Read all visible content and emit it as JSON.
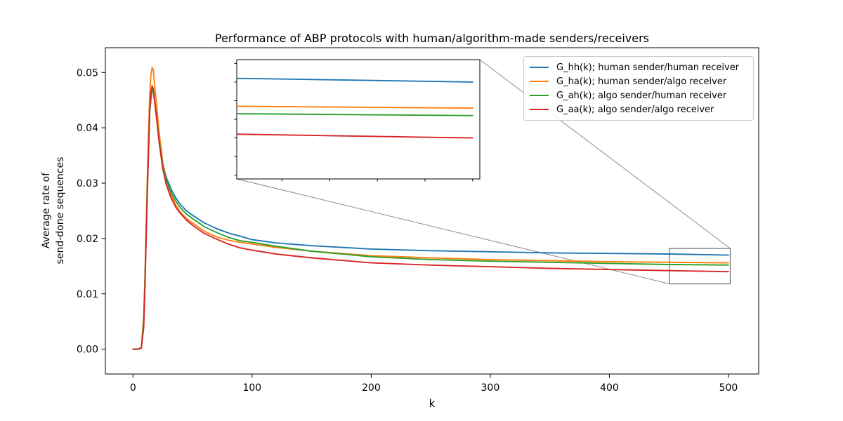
{
  "chart_data": {
    "type": "line",
    "title": "Performance of ABP protocols with human/algorithm-made senders/receivers",
    "xlabel": "k",
    "ylabel": "Average rate of send-done sequences",
    "ylabel_lines": [
      "Average rate of",
      "send-done sequences"
    ],
    "grid": false,
    "legend_position": "upper right",
    "axis_color": "#000000",
    "background_color": "#ffffff",
    "connector_color": "#8c8c8c",
    "zoom_rect_color": "#6b6b6b",
    "legend_border_color": "#cccccc",
    "xlim": [
      -23.2,
      525.4
    ],
    "ylim": [
      -0.00448,
      0.05447
    ],
    "xticks": [
      0,
      100,
      200,
      300,
      400,
      500
    ],
    "xtick_labels": [
      "0",
      "100",
      "200",
      "300",
      "400",
      "500"
    ],
    "yticks": [
      0,
      0.01,
      0.02,
      0.03,
      0.04,
      0.05
    ],
    "ytick_labels": [
      "0.00",
      "0.01",
      "0.02",
      "0.03",
      "0.04",
      "0.05"
    ],
    "x": [
      0,
      4,
      7,
      9,
      10,
      12,
      14,
      15,
      16,
      17,
      18,
      20,
      22,
      25,
      28,
      32,
      36,
      40,
      45,
      50,
      60,
      70,
      80,
      90,
      100,
      120,
      150,
      200,
      250,
      300,
      350,
      400,
      450,
      500
    ],
    "series": [
      {
        "id": "g-hh",
        "name": "G_hh(k); human sender/human receiver",
        "color": "#1f77b4",
        "values": [
          0,
          0,
          0.0002,
          0.005,
          0.012,
          0.029,
          0.043,
          0.0452,
          0.0472,
          0.0469,
          0.0452,
          0.042,
          0.038,
          0.0335,
          0.031,
          0.0289,
          0.0273,
          0.0261,
          0.025,
          0.0242,
          0.0228,
          0.0218,
          0.021,
          0.0204,
          0.0198,
          0.0192,
          0.0187,
          0.0181,
          0.0178,
          0.0176,
          0.0174,
          0.0173,
          0.0172,
          0.017
        ]
      },
      {
        "id": "g-ha",
        "name": "G_ha(k); human sender/algo receiver",
        "color": "#ff7f0e",
        "values": [
          0,
          0,
          0.0003,
          0.006,
          0.013,
          0.031,
          0.046,
          0.0495,
          0.0509,
          0.0506,
          0.0482,
          0.0437,
          0.0391,
          0.0338,
          0.0305,
          0.0278,
          0.026,
          0.0247,
          0.0236,
          0.0228,
          0.0213,
          0.0203,
          0.0197,
          0.0193,
          0.019,
          0.0184,
          0.0177,
          0.0169,
          0.0165,
          0.0162,
          0.016,
          0.0158,
          0.0157,
          0.0156
        ]
      },
      {
        "id": "g-ah",
        "name": "G_ah(k); algo sender/human receiver",
        "color": "#2ca02c",
        "values": [
          0,
          0,
          0.0002,
          0.005,
          0.012,
          0.029,
          0.043,
          0.045,
          0.0471,
          0.0467,
          0.045,
          0.0416,
          0.0377,
          0.0331,
          0.0305,
          0.0283,
          0.0267,
          0.0255,
          0.0244,
          0.0236,
          0.0221,
          0.0211,
          0.0202,
          0.0196,
          0.0193,
          0.0186,
          0.0177,
          0.0167,
          0.0162,
          0.0159,
          0.0157,
          0.0155,
          0.0153,
          0.0152
        ]
      },
      {
        "id": "g-aa",
        "name": "G_aa(k); algo sender/algo receiver",
        "color": "#d62728",
        "values": [
          0,
          0,
          0.0002,
          0.004,
          0.011,
          0.028,
          0.043,
          0.0462,
          0.0476,
          0.0471,
          0.0452,
          0.0413,
          0.0373,
          0.0326,
          0.0297,
          0.0273,
          0.0256,
          0.0245,
          0.0233,
          0.0224,
          0.0209,
          0.0199,
          0.019,
          0.0183,
          0.0179,
          0.0172,
          0.0165,
          0.0156,
          0.0152,
          0.0149,
          0.0146,
          0.0144,
          0.0142,
          0.014
        ]
      }
    ],
    "inset": {
      "xlim": [
        450.5,
        501.5
      ],
      "ylim": [
        0.0118,
        0.0182
      ],
      "xticks": [
        460,
        470,
        480,
        490,
        500
      ],
      "yticks": [
        0.012,
        0.013,
        0.014,
        0.015,
        0.016,
        0.017,
        0.018
      ],
      "tick_labels_visible": false
    }
  }
}
